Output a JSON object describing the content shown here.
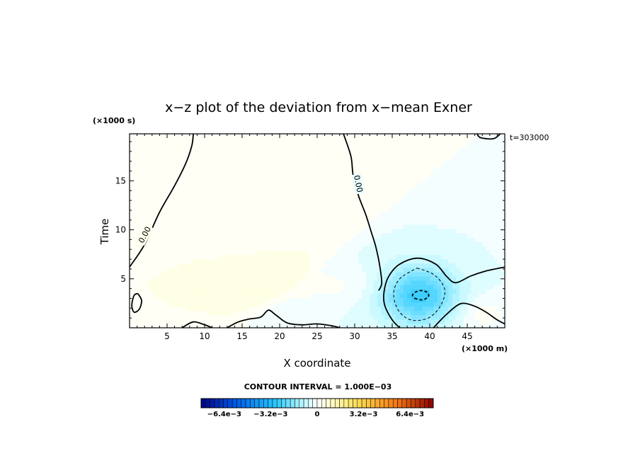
{
  "chart_data": {
    "type": "heatmap",
    "title": "x−z plot of the deviation from x−mean Exner",
    "xlabel": "X coordinate",
    "ylabel": "Time",
    "x_unit": "(×1000 m)",
    "y_unit": "(×1000 s)",
    "time_label": "t=303000",
    "contour_label": "CONTOUR INTERVAL = 1.000E−03",
    "contour_line_label": "0.00",
    "xlim": [
      0,
      50
    ],
    "ylim": [
      0,
      19.8
    ],
    "x_ticks": [
      5,
      10,
      15,
      20,
      25,
      30,
      35,
      40,
      45
    ],
    "y_ticks": [
      5,
      10,
      15
    ],
    "grid": false,
    "colorbar": {
      "min": -0.008,
      "max": 0.008,
      "tick_values": [
        -0.0064,
        -0.0032,
        0,
        0.0032,
        0.0064
      ],
      "tick_labels": [
        "−6.4e−3",
        "−3.2e−3",
        "0",
        "3.2e−3",
        "6.4e−3"
      ]
    },
    "field": {
      "background_left": 0.0003,
      "background_right": -0.0003,
      "anomalies": [
        {
          "x": 38.5,
          "y": 3.4,
          "amp": -0.0024,
          "sx": 3.6,
          "sy": 2.1
        },
        {
          "x": 25.0,
          "y": 4.3,
          "amp": 0.0004,
          "sx": 8.0,
          "sy": 1.3
        },
        {
          "x": 47.0,
          "y": 1.5,
          "amp": 0.0005,
          "sx": 2.5,
          "sy": 1.2
        }
      ]
    },
    "contours": [
      {
        "level": 0,
        "style": "solid",
        "points": [
          [
            0,
            6.2
          ],
          [
            2,
            8.5
          ],
          [
            4,
            11.8
          ],
          [
            6,
            14.5
          ],
          [
            7.5,
            16.8
          ],
          [
            8.3,
            18.6
          ],
          [
            8.5,
            19.8
          ]
        ]
      },
      {
        "level": 0,
        "style": "solid",
        "points": [
          [
            28.5,
            19.8
          ],
          [
            29.5,
            17.5
          ],
          [
            29.8,
            15.5
          ],
          [
            30.5,
            13.5
          ],
          [
            31.5,
            11.5
          ],
          [
            32.2,
            9.8
          ],
          [
            32.8,
            8.3
          ],
          [
            33.3,
            6.5
          ],
          [
            33.6,
            4.6
          ],
          [
            33.2,
            3.8
          ]
        ]
      },
      {
        "level": 0,
        "style": "solid",
        "points": [
          [
            36,
            0
          ],
          [
            35,
            0.8
          ],
          [
            34,
            2.3
          ],
          [
            33.9,
            3.6
          ],
          [
            34.5,
            5.2
          ],
          [
            36,
            6.5
          ],
          [
            38.4,
            7.1
          ],
          [
            40.8,
            6.5
          ],
          [
            42.3,
            5.2
          ],
          [
            43.5,
            4.6
          ],
          [
            45.5,
            5.3
          ],
          [
            47.5,
            5.8
          ],
          [
            50,
            6.2
          ]
        ]
      },
      {
        "level": 0,
        "style": "solid",
        "points": [
          [
            40.5,
            0
          ],
          [
            42,
            1.2
          ],
          [
            43.5,
            2.2
          ],
          [
            44.5,
            2.5
          ],
          [
            46,
            2.2
          ],
          [
            47.5,
            1.6
          ],
          [
            49,
            0.8
          ],
          [
            50,
            0.4
          ]
        ]
      },
      {
        "level": 0,
        "style": "solid",
        "points": [
          [
            1.1,
            3.5
          ],
          [
            1.6,
            2.8
          ],
          [
            1.3,
            1.9
          ],
          [
            0.6,
            1.6
          ],
          [
            0.3,
            2.3
          ],
          [
            0.6,
            3.3
          ],
          [
            1.1,
            3.5
          ]
        ]
      },
      {
        "level": 0,
        "style": "solid",
        "points": [
          [
            7,
            0
          ],
          [
            8.5,
            0.6
          ],
          [
            10,
            0.3
          ],
          [
            11,
            0
          ]
        ]
      },
      {
        "level": 0,
        "style": "solid",
        "points": [
          [
            13,
            0
          ],
          [
            14.5,
            0.6
          ],
          [
            16,
            0.9
          ],
          [
            17.5,
            1.1
          ],
          [
            18.5,
            1.8
          ],
          [
            19.5,
            1.3
          ],
          [
            21,
            0.5
          ],
          [
            23,
            0.3
          ],
          [
            25,
            0.4
          ],
          [
            27,
            0.2
          ],
          [
            28,
            0
          ]
        ]
      },
      {
        "level": 0,
        "style": "solid",
        "points": [
          [
            46.3,
            19.8
          ],
          [
            46.8,
            19.4
          ],
          [
            48.5,
            19.3
          ],
          [
            49.4,
            19.8
          ]
        ]
      },
      {
        "level": -0.001,
        "style": "dashed",
        "points": [
          [
            38.3,
            6.1
          ],
          [
            40.6,
            5.4
          ],
          [
            42,
            3.9
          ],
          [
            41.4,
            2.2
          ],
          [
            39.8,
            1
          ],
          [
            37.5,
            0.8
          ],
          [
            35.8,
            1.8
          ],
          [
            35.2,
            3.5
          ],
          [
            36,
            5
          ],
          [
            38.3,
            6.1
          ]
        ]
      },
      {
        "level": -0.002,
        "style": "dashed",
        "points": [
          [
            38,
            3.0
          ],
          [
            39,
            2.85
          ],
          [
            39.8,
            3.15
          ],
          [
            39.7,
            3.6
          ],
          [
            38.8,
            3.8
          ],
          [
            38,
            3.6
          ],
          [
            37.7,
            3.3
          ],
          [
            38,
            3.0
          ]
        ]
      }
    ],
    "contour_labels": [
      {
        "x": 2,
        "y": 9.5,
        "angle": -62,
        "text_key": "contour_line_label"
      },
      {
        "x": 30.5,
        "y": 14.7,
        "angle": 78,
        "text_key": "contour_line_label"
      }
    ]
  }
}
